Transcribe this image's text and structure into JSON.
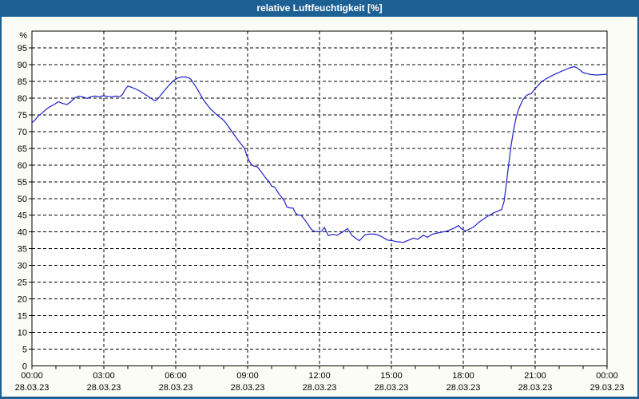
{
  "window": {
    "title": "relative Luftfeuchtigkeit [%]"
  },
  "colors": {
    "titlebar": "#1d6094",
    "border": "#1d6094",
    "content_bg": "#fcfcf6",
    "plot_bg": "#ffffff",
    "grid": "#000000",
    "axis": "#000000",
    "tick_label": "#000000",
    "title_text": "#ffffff",
    "line": "#2020c8"
  },
  "chart_data": {
    "type": "line",
    "title": "relative Luftfeuchtigkeit [%]",
    "ylabel_unit": "%",
    "xlabel": "",
    "ylim": [
      0,
      100
    ],
    "ytick_step": 5,
    "yticks": [
      5,
      10,
      15,
      20,
      25,
      30,
      35,
      40,
      45,
      50,
      55,
      60,
      65,
      70,
      75,
      80,
      85,
      90,
      95
    ],
    "y_axis_zero_label": "0",
    "grid": "dashed",
    "legend": "none",
    "xlim_minutes": [
      0,
      1440
    ],
    "x_minor_tick_minutes": 60,
    "x_major_ticks": [
      {
        "minutes": 0,
        "time": "00:00",
        "date": "28.03.23"
      },
      {
        "minutes": 180,
        "time": "03:00",
        "date": "28.03.23"
      },
      {
        "minutes": 360,
        "time": "06:00",
        "date": "28.03.23"
      },
      {
        "minutes": 540,
        "time": "09:00",
        "date": "28.03.23"
      },
      {
        "minutes": 720,
        "time": "12:00",
        "date": "28.03.23"
      },
      {
        "minutes": 900,
        "time": "15:00",
        "date": "28.03.23"
      },
      {
        "minutes": 1080,
        "time": "18:00",
        "date": "28.03.23"
      },
      {
        "minutes": 1260,
        "time": "21:00",
        "date": "28.03.23"
      },
      {
        "minutes": 1440,
        "time": "00:00",
        "date": "29.03.23"
      }
    ],
    "series": [
      {
        "name": "relative Luftfeuchtigkeit [%]",
        "color": "#2020c8",
        "points": [
          [
            0,
            72.6
          ],
          [
            8,
            73.5
          ],
          [
            16,
            74.7
          ],
          [
            25,
            75.5
          ],
          [
            35,
            76.6
          ],
          [
            45,
            77.4
          ],
          [
            56,
            78.1
          ],
          [
            66,
            78.9
          ],
          [
            76,
            78.4
          ],
          [
            88,
            78.1
          ],
          [
            98,
            79.0
          ],
          [
            108,
            80.1
          ],
          [
            118,
            80.6
          ],
          [
            128,
            80.3
          ],
          [
            138,
            79.9
          ],
          [
            148,
            80.4
          ],
          [
            158,
            80.6
          ],
          [
            168,
            80.4
          ],
          [
            178,
            80.7
          ],
          [
            190,
            80.5
          ],
          [
            200,
            80.4
          ],
          [
            210,
            80.6
          ],
          [
            220,
            80.4
          ],
          [
            226,
            81.0
          ],
          [
            232,
            82.3
          ],
          [
            240,
            83.6
          ],
          [
            250,
            83.2
          ],
          [
            260,
            82.7
          ],
          [
            270,
            82.1
          ],
          [
            280,
            81.3
          ],
          [
            290,
            80.6
          ],
          [
            300,
            79.8
          ],
          [
            308,
            79.2
          ],
          [
            314,
            79.6
          ],
          [
            320,
            80.5
          ],
          [
            330,
            82.0
          ],
          [
            340,
            83.4
          ],
          [
            350,
            84.7
          ],
          [
            358,
            85.5
          ],
          [
            366,
            86.0
          ],
          [
            374,
            86.3
          ],
          [
            384,
            86.3
          ],
          [
            392,
            86.1
          ],
          [
            398,
            85.6
          ],
          [
            406,
            84.2
          ],
          [
            414,
            82.7
          ],
          [
            422,
            81.0
          ],
          [
            430,
            79.4
          ],
          [
            438,
            78.1
          ],
          [
            446,
            76.9
          ],
          [
            452,
            76.2
          ],
          [
            460,
            75.3
          ],
          [
            468,
            74.5
          ],
          [
            476,
            73.8
          ],
          [
            484,
            72.8
          ],
          [
            492,
            71.5
          ],
          [
            500,
            70.1
          ],
          [
            508,
            68.8
          ],
          [
            516,
            67.4
          ],
          [
            524,
            66.2
          ],
          [
            532,
            65.0
          ],
          [
            538,
            62.8
          ],
          [
            544,
            61.2
          ],
          [
            550,
            60.1
          ],
          [
            556,
            59.7
          ],
          [
            564,
            59.5
          ],
          [
            574,
            58.0
          ],
          [
            584,
            56.3
          ],
          [
            594,
            55.0
          ],
          [
            600,
            53.7
          ],
          [
            608,
            53.4
          ],
          [
            616,
            51.8
          ],
          [
            626,
            50.2
          ],
          [
            632,
            49.3
          ],
          [
            638,
            47.5
          ],
          [
            646,
            47.2
          ],
          [
            654,
            47.1
          ],
          [
            660,
            45.6
          ],
          [
            666,
            45.1
          ],
          [
            674,
            45.0
          ],
          [
            682,
            43.8
          ],
          [
            690,
            42.5
          ],
          [
            698,
            41.0
          ],
          [
            706,
            40.2
          ],
          [
            718,
            40.1
          ],
          [
            726,
            40.3
          ],
          [
            732,
            41.4
          ],
          [
            742,
            38.9
          ],
          [
            754,
            39.3
          ],
          [
            764,
            39.0
          ],
          [
            778,
            40.0
          ],
          [
            790,
            41.0
          ],
          [
            802,
            38.9
          ],
          [
            812,
            38.0
          ],
          [
            820,
            37.4
          ],
          [
            834,
            39.2
          ],
          [
            848,
            39.4
          ],
          [
            862,
            39.3
          ],
          [
            876,
            38.6
          ],
          [
            890,
            37.6
          ],
          [
            902,
            37.4
          ],
          [
            914,
            37.1
          ],
          [
            930,
            36.9
          ],
          [
            944,
            37.6
          ],
          [
            956,
            38.2
          ],
          [
            966,
            37.8
          ],
          [
            980,
            39.0
          ],
          [
            990,
            38.4
          ],
          [
            1002,
            39.3
          ],
          [
            1020,
            39.8
          ],
          [
            1040,
            40.3
          ],
          [
            1058,
            41.2
          ],
          [
            1068,
            41.9
          ],
          [
            1076,
            40.9
          ],
          [
            1086,
            40.3
          ],
          [
            1096,
            40.9
          ],
          [
            1106,
            41.5
          ],
          [
            1120,
            43.0
          ],
          [
            1140,
            44.6
          ],
          [
            1156,
            45.7
          ],
          [
            1166,
            46.2
          ],
          [
            1176,
            46.7
          ],
          [
            1182,
            49.0
          ],
          [
            1188,
            54.5
          ],
          [
            1194,
            60.5
          ],
          [
            1200,
            66.0
          ],
          [
            1206,
            70.5
          ],
          [
            1212,
            74.0
          ],
          [
            1218,
            76.5
          ],
          [
            1224,
            78.2
          ],
          [
            1230,
            79.6
          ],
          [
            1236,
            80.5
          ],
          [
            1243,
            81.1
          ],
          [
            1250,
            81.3
          ],
          [
            1256,
            82.3
          ],
          [
            1263,
            83.2
          ],
          [
            1274,
            84.7
          ],
          [
            1288,
            85.8
          ],
          [
            1302,
            86.7
          ],
          [
            1316,
            87.5
          ],
          [
            1330,
            88.2
          ],
          [
            1344,
            88.9
          ],
          [
            1356,
            89.4
          ],
          [
            1364,
            89.1
          ],
          [
            1372,
            88.4
          ],
          [
            1380,
            87.6
          ],
          [
            1390,
            87.3
          ],
          [
            1400,
            87.0
          ],
          [
            1414,
            86.9
          ],
          [
            1428,
            87.0
          ],
          [
            1440,
            87.1
          ]
        ]
      }
    ]
  }
}
